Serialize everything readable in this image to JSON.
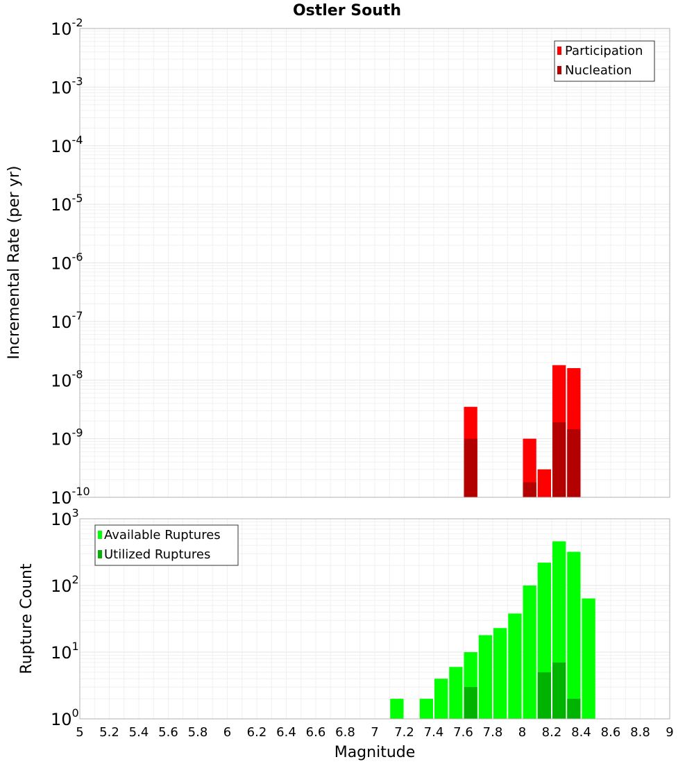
{
  "chart_data": [
    {
      "type": "bar",
      "title": "Ostler South",
      "ylabel": "Incremental Rate (per yr)",
      "xlabel": "",
      "yscale": "log",
      "ylim_exponents": [
        -10,
        -2
      ],
      "xlim": [
        5,
        9
      ],
      "bar_width": 0.1,
      "legend_position": "top-right",
      "series": [
        {
          "name": "Participation",
          "color": "#ff0000",
          "points": [
            [
              7.65,
              3.5e-09
            ],
            [
              8.05,
              1e-09
            ],
            [
              8.15,
              3e-10
            ],
            [
              8.25,
              1.8e-08
            ],
            [
              8.35,
              1.6e-08
            ]
          ]
        },
        {
          "name": "Nucleation",
          "color": "#b30000",
          "points": [
            [
              7.65,
              1e-09
            ],
            [
              8.05,
              1.8e-10
            ],
            [
              8.25,
              1.9e-09
            ],
            [
              8.35,
              1.45e-09
            ]
          ]
        }
      ]
    },
    {
      "type": "bar",
      "xlabel": "Magnitude",
      "ylabel": "Rupture Count",
      "yscale": "log",
      "ylim_exponents": [
        0,
        3
      ],
      "xlim": [
        5,
        9
      ],
      "bar_width": 0.1,
      "legend_position": "top-left",
      "xticks": [
        "5",
        "5.2",
        "5.4",
        "5.6",
        "5.8",
        "6",
        "6.2",
        "6.4",
        "6.6",
        "6.8",
        "7",
        "7.2",
        "7.4",
        "7.6",
        "7.8",
        "8",
        "8.2",
        "8.4",
        "8.6",
        "8.8",
        "9"
      ],
      "series": [
        {
          "name": "Available Ruptures",
          "color": "#00ff00",
          "points": [
            [
              7.15,
              2
            ],
            [
              7.35,
              2
            ],
            [
              7.45,
              4
            ],
            [
              7.55,
              6
            ],
            [
              7.65,
              10
            ],
            [
              7.75,
              18
            ],
            [
              7.85,
              23
            ],
            [
              7.95,
              38
            ],
            [
              8.05,
              100
            ],
            [
              8.15,
              220
            ],
            [
              8.25,
              460
            ],
            [
              8.35,
              320
            ],
            [
              8.45,
              64
            ]
          ]
        },
        {
          "name": "Utilized Ruptures",
          "color": "#00b300",
          "points": [
            [
              7.65,
              3
            ],
            [
              7.85,
              1
            ],
            [
              8.05,
              1
            ],
            [
              8.15,
              5
            ],
            [
              8.25,
              7
            ],
            [
              8.35,
              2
            ]
          ]
        }
      ]
    }
  ]
}
